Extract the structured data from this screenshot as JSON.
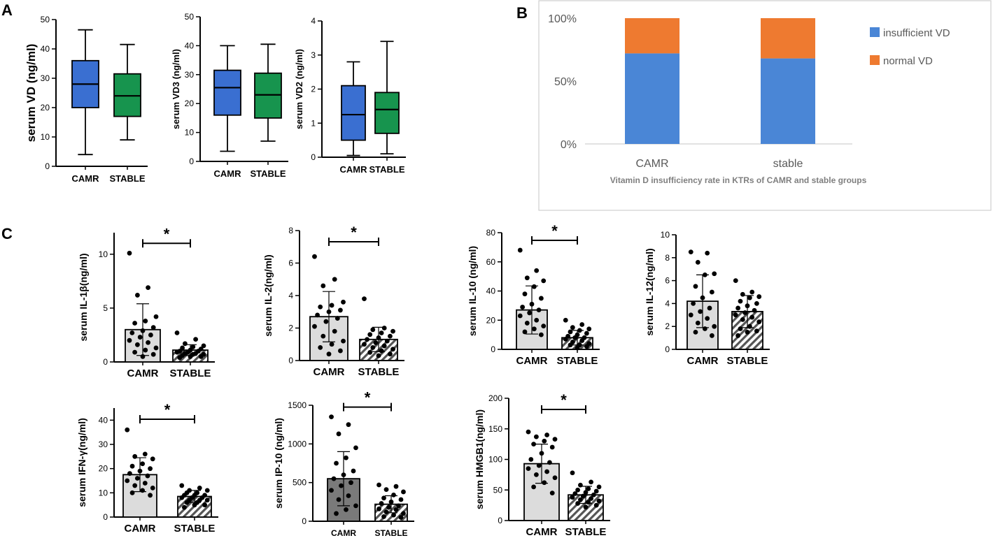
{
  "panel_labels": {
    "A": "A",
    "B": "B",
    "C": "C"
  },
  "chart_data": [
    {
      "id": "boxVD",
      "panel": "A",
      "type": "box",
      "ylabel": "serum VD (ng/ml)",
      "ylim": [
        0,
        50
      ],
      "yticks": [
        0,
        10,
        20,
        30,
        40,
        50
      ],
      "categories": [
        "CAMR",
        "STABLE"
      ],
      "boxes": [
        {
          "group": "CAMR",
          "min": 4,
          "q1": 20,
          "median": 28,
          "q3": 36,
          "max": 46.5,
          "color": "#3a6fd1"
        },
        {
          "group": "STABLE",
          "min": 9,
          "q1": 17,
          "median": 24,
          "q3": 31.5,
          "max": 41.5,
          "color": "#17944e"
        }
      ]
    },
    {
      "id": "boxVD3",
      "panel": "A",
      "type": "box",
      "ylabel": "serum VD3 (ng/ml)",
      "ylim": [
        0,
        50
      ],
      "yticks": [
        0,
        10,
        20,
        30,
        40,
        50
      ],
      "categories": [
        "CAMR",
        "STABLE"
      ],
      "boxes": [
        {
          "group": "CAMR",
          "min": 3.5,
          "q1": 16,
          "median": 25.5,
          "q3": 31.5,
          "max": 40,
          "color": "#3a6fd1"
        },
        {
          "group": "STABLE",
          "min": 7,
          "q1": 15,
          "median": 23,
          "q3": 30.5,
          "max": 40.5,
          "color": "#17944e"
        }
      ]
    },
    {
      "id": "boxVD2",
      "panel": "A",
      "type": "box",
      "ylabel": "serum VD2 (ng/ml)",
      "ylim": [
        0,
        4
      ],
      "yticks": [
        0,
        1,
        2,
        3,
        4
      ],
      "categories": [
        "CAMR",
        "STABLE"
      ],
      "boxes": [
        {
          "group": "CAMR",
          "min": 0.05,
          "q1": 0.5,
          "median": 1.25,
          "q3": 2.1,
          "max": 2.8,
          "color": "#3a6fd1"
        },
        {
          "group": "STABLE",
          "min": 0.1,
          "q1": 0.7,
          "median": 1.4,
          "q3": 1.9,
          "max": 3.4,
          "color": "#17944e"
        }
      ]
    },
    {
      "id": "stacked",
      "panel": "B",
      "type": "bar",
      "title": "Vitamin D insufficiency rate in KTRs of CAMR and stable groups",
      "categories": [
        "CAMR",
        "stable"
      ],
      "yticks": [
        "0%",
        "50%",
        "100%"
      ],
      "series": [
        {
          "name": "insufficient VD",
          "values": [
            72,
            68
          ],
          "color": "#4a86d6"
        },
        {
          "name": "normal VD",
          "values": [
            28,
            32
          ],
          "color": "#ee7a30"
        }
      ],
      "legend": "right"
    },
    {
      "id": "il1b",
      "panel": "C",
      "type": "bar",
      "ylabel": "serum IL-1β(ng/ml)",
      "ylim": [
        0,
        12
      ],
      "yticks": [
        0,
        5,
        10
      ],
      "categories": [
        "CAMR",
        "STABLE"
      ],
      "values": [
        3.0,
        1.1
      ],
      "errors": [
        2.4,
        0.5
      ],
      "bar_styles": [
        "solid",
        "hatch"
      ],
      "significance": "*",
      "points": [
        [
          10.1,
          6.9,
          6.2,
          4.2,
          3.8,
          3.6,
          3.2,
          2.9,
          2.7,
          2.5,
          2.3,
          2.0,
          1.8,
          1.6,
          1.3,
          1.1,
          0.9,
          0.7,
          0.5
        ],
        [
          2.7,
          2.1,
          1.7,
          1.5,
          1.4,
          1.3,
          1.2,
          1.1,
          1.0,
          1.0,
          0.9,
          0.9,
          0.8,
          0.8,
          0.7,
          0.7,
          0.6,
          0.5,
          0.5,
          0.4
        ]
      ]
    },
    {
      "id": "il2",
      "panel": "C",
      "type": "bar",
      "ylabel": "serum IL-2(ng/ml)",
      "ylim": [
        0,
        8
      ],
      "yticks": [
        0,
        2,
        4,
        6,
        8
      ],
      "categories": [
        "CAMR",
        "STABLE"
      ],
      "values": [
        2.7,
        1.3
      ],
      "errors": [
        1.55,
        0.75
      ],
      "bar_styles": [
        "solid",
        "hatch"
      ],
      "significance": "*",
      "points": [
        [
          6.4,
          5.0,
          4.6,
          3.6,
          3.4,
          3.3,
          3.1,
          3.0,
          2.8,
          2.6,
          2.4,
          2.1,
          1.8,
          1.5,
          1.2,
          1.0,
          0.8,
          0.6,
          0.4
        ],
        [
          3.8,
          2.0,
          1.9,
          1.8,
          1.7,
          1.6,
          1.5,
          1.4,
          1.3,
          1.2,
          1.1,
          1.0,
          0.9,
          0.8,
          0.7,
          0.6,
          0.5,
          0.4,
          0.3
        ]
      ]
    },
    {
      "id": "il10",
      "panel": "C",
      "type": "bar",
      "ylabel": "serum IL-10 (ng/ml)",
      "ylim": [
        0,
        80
      ],
      "yticks": [
        0,
        20,
        40,
        60,
        80
      ],
      "categories": [
        "CAMR",
        "STABLE"
      ],
      "values": [
        27,
        8
      ],
      "errors": [
        16.5,
        5
      ],
      "bar_styles": [
        "solid",
        "hatch"
      ],
      "significance": "*",
      "points": [
        [
          68,
          54,
          49,
          47,
          43,
          38,
          35,
          31,
          29,
          27,
          25,
          23,
          20,
          18,
          16,
          14,
          12,
          10
        ],
        [
          20,
          17,
          15,
          14,
          13,
          12,
          11,
          10,
          9,
          8,
          8,
          7,
          6,
          5,
          4,
          3,
          3,
          2,
          1
        ]
      ]
    },
    {
      "id": "il12",
      "panel": "C",
      "type": "bar",
      "ylabel": "serum IL-12(ng/ml)",
      "ylim": [
        0,
        10
      ],
      "yticks": [
        0,
        2,
        4,
        6,
        8,
        10
      ],
      "categories": [
        "CAMR",
        "STABLE"
      ],
      "values": [
        4.2,
        3.3
      ],
      "errors": [
        2.3,
        1.4
      ],
      "bar_styles": [
        "solid",
        "hatch"
      ],
      "significance": "",
      "points": [
        [
          8.5,
          8.4,
          7.6,
          6.6,
          6.5,
          5.5,
          5.0,
          4.5,
          4.0,
          3.6,
          3.3,
          3.0,
          2.7,
          2.3,
          2.0,
          1.8,
          1.5,
          1.2
        ],
        [
          6.0,
          5.0,
          4.8,
          4.6,
          4.5,
          4.2,
          4.0,
          3.8,
          3.6,
          3.4,
          3.2,
          3.0,
          2.8,
          2.6,
          2.4,
          2.0,
          1.8,
          1.6,
          1.5,
          1.2
        ]
      ]
    },
    {
      "id": "ifng",
      "panel": "C",
      "type": "bar",
      "ylabel": "serum IFN-γ(ng/ml)",
      "ylim": [
        0,
        45
      ],
      "yticks": [
        0,
        10,
        20,
        30,
        40
      ],
      "categories": [
        "CAMR",
        "STABLE"
      ],
      "values": [
        17.5,
        8.5
      ],
      "errors": [
        7,
        2.5
      ],
      "bar_styles": [
        "solid",
        "hatch"
      ],
      "significance": "*",
      "points": [
        [
          36,
          26,
          25,
          24,
          22,
          21,
          20,
          19,
          18,
          17,
          16,
          15,
          14,
          13,
          12,
          11,
          10,
          9
        ],
        [
          13,
          12,
          11,
          11,
          10,
          10,
          9,
          9,
          9,
          8,
          8,
          8,
          7,
          7,
          7,
          6,
          6,
          5,
          5,
          4
        ]
      ]
    },
    {
      "id": "ip10",
      "panel": "C",
      "type": "bar",
      "ylabel": "serum IP-10 (ng/ml)",
      "ylim": [
        0,
        1500
      ],
      "yticks": [
        0,
        500,
        1000,
        1500
      ],
      "categories": [
        "CAMR",
        "STABLE"
      ],
      "values": [
        550,
        220
      ],
      "errors": [
        350,
        110
      ],
      "bar_styles": [
        "dark",
        "hatch"
      ],
      "significance": "*",
      "points": [
        [
          1350,
          1250,
          1130,
          950,
          820,
          750,
          650,
          600,
          550,
          500,
          460,
          400,
          330,
          280,
          200,
          150,
          100
        ],
        [
          470,
          450,
          410,
          380,
          340,
          300,
          280,
          250,
          230,
          200,
          180,
          160,
          150,
          120,
          100,
          80,
          60,
          50
        ]
      ]
    },
    {
      "id": "hmgb1",
      "panel": "C",
      "type": "bar",
      "ylabel": "serum HMGB1(ng/ml)",
      "ylim": [
        0,
        200
      ],
      "yticks": [
        0,
        50,
        100,
        150,
        200
      ],
      "categories": [
        "CAMR",
        "STABLE"
      ],
      "values": [
        93,
        42
      ],
      "errors": [
        32,
        14
      ],
      "bar_styles": [
        "solid",
        "hatch"
      ],
      "significance": "*",
      "points": [
        [
          145,
          140,
          137,
          133,
          130,
          125,
          120,
          110,
          100,
          95,
          90,
          85,
          80,
          75,
          70,
          62,
          55,
          45
        ],
        [
          78,
          63,
          58,
          55,
          52,
          50,
          48,
          46,
          44,
          42,
          40,
          38,
          36,
          34,
          32,
          30,
          28,
          25,
          22
        ]
      ]
    }
  ]
}
